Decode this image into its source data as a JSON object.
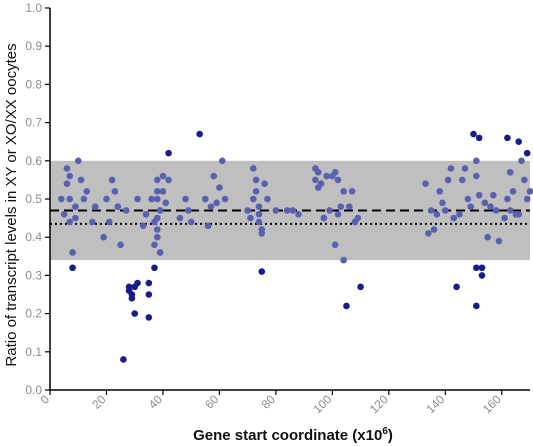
{
  "chart_data": {
    "type": "scatter",
    "title": "",
    "xlabel": "Gene start coordinate (x10",
    "xlabel_superscript": "6",
    "xlabel_suffix": ")",
    "ylabel": "Ratio of transcript levels in XY or XO/XX oocytes",
    "xlim": [
      0,
      170
    ],
    "ylim": [
      0.0,
      1.0
    ],
    "x_ticks": [
      0,
      20,
      40,
      60,
      80,
      100,
      120,
      140,
      160
    ],
    "x_tick_labels": [
      "0",
      "20",
      "40",
      "60",
      "80",
      "100",
      "120",
      "140",
      "160"
    ],
    "y_ticks": [
      0.0,
      0.1,
      0.2,
      0.3,
      0.4,
      0.5,
      0.6,
      0.7,
      0.8,
      0.9,
      1.0
    ],
    "y_tick_labels": [
      "0.0",
      "0.1",
      "0.2",
      "0.3",
      "0.4",
      "0.5",
      "0.6",
      "0.7",
      "0.8",
      "0.9",
      "1.0"
    ],
    "shaded_band": {
      "ymin": 0.34,
      "ymax": 0.6,
      "color": "#bfbfbf"
    },
    "dashed_line_y": 0.47,
    "dotted_line_y": 0.435,
    "point_color_light": "#5a5fb0",
    "point_color_dark": "#1a1a8c",
    "points": [
      [
        4,
        0.5
      ],
      [
        5,
        0.46
      ],
      [
        6,
        0.54
      ],
      [
        6,
        0.58
      ],
      [
        7,
        0.44
      ],
      [
        7,
        0.5
      ],
      [
        7,
        0.56
      ],
      [
        8,
        0.36
      ],
      [
        8,
        0.32
      ],
      [
        9,
        0.45
      ],
      [
        9,
        0.48
      ],
      [
        10,
        0.6
      ],
      [
        11,
        0.55
      ],
      [
        12,
        0.5
      ],
      [
        13,
        0.52
      ],
      [
        15,
        0.44
      ],
      [
        16,
        0.48
      ],
      [
        19,
        0.4
      ],
      [
        20,
        0.5
      ],
      [
        21,
        0.44
      ],
      [
        22,
        0.55
      ],
      [
        23,
        0.52
      ],
      [
        24,
        0.48
      ],
      [
        25,
        0.38
      ],
      [
        26,
        0.08
      ],
      [
        27,
        0.47
      ],
      [
        28,
        0.26
      ],
      [
        28,
        0.27
      ],
      [
        29,
        0.24
      ],
      [
        29,
        0.25
      ],
      [
        30,
        0.27
      ],
      [
        30,
        0.2
      ],
      [
        31,
        0.28
      ],
      [
        31,
        0.5
      ],
      [
        33,
        0.43
      ],
      [
        34,
        0.46
      ],
      [
        35,
        0.28
      ],
      [
        35,
        0.25
      ],
      [
        35,
        0.19
      ],
      [
        36,
        0.5
      ],
      [
        37,
        0.44
      ],
      [
        37,
        0.38
      ],
      [
        37,
        0.32
      ],
      [
        38,
        0.55
      ],
      [
        38,
        0.52
      ],
      [
        38,
        0.5
      ],
      [
        38,
        0.45
      ],
      [
        38,
        0.42
      ],
      [
        38,
        0.4
      ],
      [
        39,
        0.36
      ],
      [
        39,
        0.47
      ],
      [
        40,
        0.56
      ],
      [
        40,
        0.52
      ],
      [
        41,
        0.49
      ],
      [
        42,
        0.62
      ],
      [
        42,
        0.55
      ],
      [
        46,
        0.45
      ],
      [
        48,
        0.5
      ],
      [
        49,
        0.47
      ],
      [
        50,
        0.44
      ],
      [
        53,
        0.67
      ],
      [
        55,
        0.5
      ],
      [
        56,
        0.43
      ],
      [
        57,
        0.48
      ],
      [
        58,
        0.56
      ],
      [
        59,
        0.49
      ],
      [
        60,
        0.53
      ],
      [
        61,
        0.6
      ],
      [
        62,
        0.5
      ],
      [
        70,
        0.47
      ],
      [
        71,
        0.45
      ],
      [
        72,
        0.5
      ],
      [
        72,
        0.58
      ],
      [
        73,
        0.55
      ],
      [
        73,
        0.52
      ],
      [
        74,
        0.48
      ],
      [
        74,
        0.46
      ],
      [
        74,
        0.44
      ],
      [
        75,
        0.42
      ],
      [
        75,
        0.41
      ],
      [
        75,
        0.31
      ],
      [
        76,
        0.54
      ],
      [
        77,
        0.5
      ],
      [
        80,
        0.47
      ],
      [
        84,
        0.47
      ],
      [
        86,
        0.47
      ],
      [
        88,
        0.46
      ],
      [
        94,
        0.58
      ],
      [
        94,
        0.55
      ],
      [
        95,
        0.53
      ],
      [
        95,
        0.57
      ],
      [
        96,
        0.54
      ],
      [
        97,
        0.45
      ],
      [
        98,
        0.56
      ],
      [
        99,
        0.47
      ],
      [
        100,
        0.56
      ],
      [
        101,
        0.38
      ],
      [
        101,
        0.57
      ],
      [
        102,
        0.55
      ],
      [
        102,
        0.46
      ],
      [
        103,
        0.48
      ],
      [
        104,
        0.34
      ],
      [
        104,
        0.52
      ],
      [
        105,
        0.22
      ],
      [
        106,
        0.48
      ],
      [
        107,
        0.52
      ],
      [
        108,
        0.44
      ],
      [
        109,
        0.45
      ],
      [
        110,
        0.27
      ],
      [
        133,
        0.54
      ],
      [
        134,
        0.41
      ],
      [
        135,
        0.47
      ],
      [
        136,
        0.42
      ],
      [
        137,
        0.46
      ],
      [
        138,
        0.52
      ],
      [
        139,
        0.49
      ],
      [
        140,
        0.47
      ],
      [
        141,
        0.55
      ],
      [
        142,
        0.58
      ],
      [
        143,
        0.45
      ],
      [
        144,
        0.27
      ],
      [
        145,
        0.46
      ],
      [
        146,
        0.55
      ],
      [
        147,
        0.58
      ],
      [
        148,
        0.5
      ],
      [
        149,
        0.48
      ],
      [
        150,
        0.67
      ],
      [
        151,
        0.6
      ],
      [
        151,
        0.56
      ],
      [
        151,
        0.32
      ],
      [
        151,
        0.22
      ],
      [
        152,
        0.51
      ],
      [
        152,
        0.66
      ],
      [
        153,
        0.3
      ],
      [
        153,
        0.32
      ],
      [
        154,
        0.49
      ],
      [
        155,
        0.4
      ],
      [
        156,
        0.48
      ],
      [
        157,
        0.51
      ],
      [
        158,
        0.47
      ],
      [
        159,
        0.39
      ],
      [
        161,
        0.45
      ],
      [
        162,
        0.5
      ],
      [
        162,
        0.66
      ],
      [
        163,
        0.57
      ],
      [
        163,
        0.47
      ],
      [
        164,
        0.52
      ],
      [
        165,
        0.46
      ],
      [
        166,
        0.46
      ],
      [
        166,
        0.65
      ],
      [
        167,
        0.6
      ],
      [
        168,
        0.55
      ],
      [
        169,
        0.5
      ],
      [
        169,
        0.62
      ],
      [
        170,
        0.52
      ]
    ],
    "grid": false,
    "legend": "none"
  }
}
